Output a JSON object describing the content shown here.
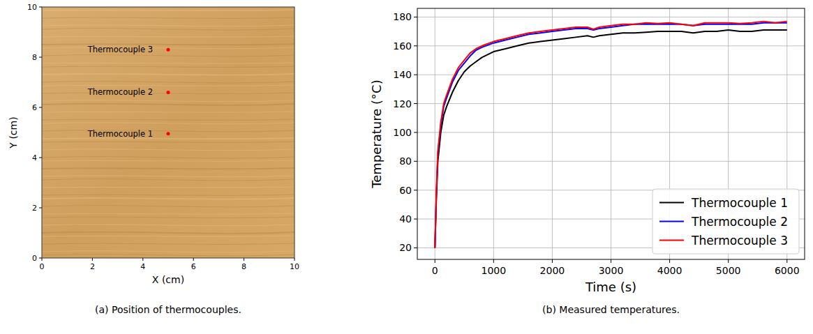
{
  "chart_data": [
    {
      "type": "scatter",
      "caption": "(a) Position of thermocouples.",
      "x_label": "X (cm)",
      "y_label": "Y (cm)",
      "x": [
        5,
        5,
        5
      ],
      "series": [
        {
          "color": "#ff0000",
          "marker": "circle",
          "values": [
            4.95,
            6.6,
            8.3
          ]
        }
      ],
      "annotations": [
        "Thermocouple 1",
        "Thermocouple 2",
        "Thermocouple 3"
      ],
      "xlim": [
        0,
        10
      ],
      "ylim": [
        0,
        10
      ],
      "xticks": [
        0,
        2,
        4,
        6,
        8,
        10
      ],
      "yticks": [
        0,
        2,
        4,
        6,
        8,
        10
      ],
      "grid": false
    },
    {
      "type": "line",
      "caption": "(b) Measured temperatures.",
      "x_label": "Time (s)",
      "y_label": "Temperature (°C)",
      "x": [
        0,
        25,
        50,
        100,
        150,
        200,
        300,
        400,
        500,
        600,
        700,
        800,
        1000,
        1200,
        1400,
        1600,
        1800,
        2000,
        2200,
        2400,
        2600,
        2700,
        2800,
        3000,
        3200,
        3400,
        3600,
        3800,
        4000,
        4200,
        4400,
        4600,
        4800,
        5000,
        5200,
        5400,
        5600,
        5800,
        6000
      ],
      "series": [
        {
          "name": "Thermocouple 1",
          "color": "#000000",
          "values": [
            20,
            55,
            80,
            100,
            112,
            118,
            128,
            136,
            142,
            146,
            149,
            152,
            156,
            158,
            160,
            162,
            163,
            164,
            165,
            166,
            167,
            166,
            167,
            168,
            169,
            169,
            169.5,
            170,
            170,
            170,
            169,
            170,
            170,
            171,
            170,
            170,
            171,
            171,
            171
          ]
        },
        {
          "name": "Thermocouple 2",
          "color": "#0000ff",
          "values": [
            20,
            58,
            85,
            105,
            118,
            124,
            135,
            143,
            148,
            153,
            157,
            159,
            162,
            164,
            166,
            168,
            169,
            170,
            171,
            172,
            172,
            171,
            172,
            173,
            174,
            175,
            175,
            175,
            175,
            175,
            174,
            175,
            175,
            175,
            175,
            175,
            176,
            176,
            176
          ]
        },
        {
          "name": "Thermocouple 3",
          "color": "#ff0000",
          "values": [
            20,
            60,
            87,
            107,
            120,
            126,
            137,
            145,
            150,
            155,
            158,
            160,
            163,
            165,
            167,
            169,
            170,
            171,
            172,
            173,
            173,
            171.5,
            173,
            174,
            175,
            175,
            176,
            175.5,
            176,
            175,
            174,
            176,
            176,
            176,
            175.5,
            176,
            177,
            176,
            177
          ]
        }
      ],
      "xlim": [
        -300,
        6300
      ],
      "ylim": [
        12,
        186
      ],
      "xticks": [
        0,
        1000,
        2000,
        3000,
        4000,
        5000,
        6000
      ],
      "yticks": [
        20,
        40,
        60,
        80,
        100,
        120,
        140,
        160,
        180
      ],
      "grid": true,
      "legend": "lower right"
    }
  ]
}
